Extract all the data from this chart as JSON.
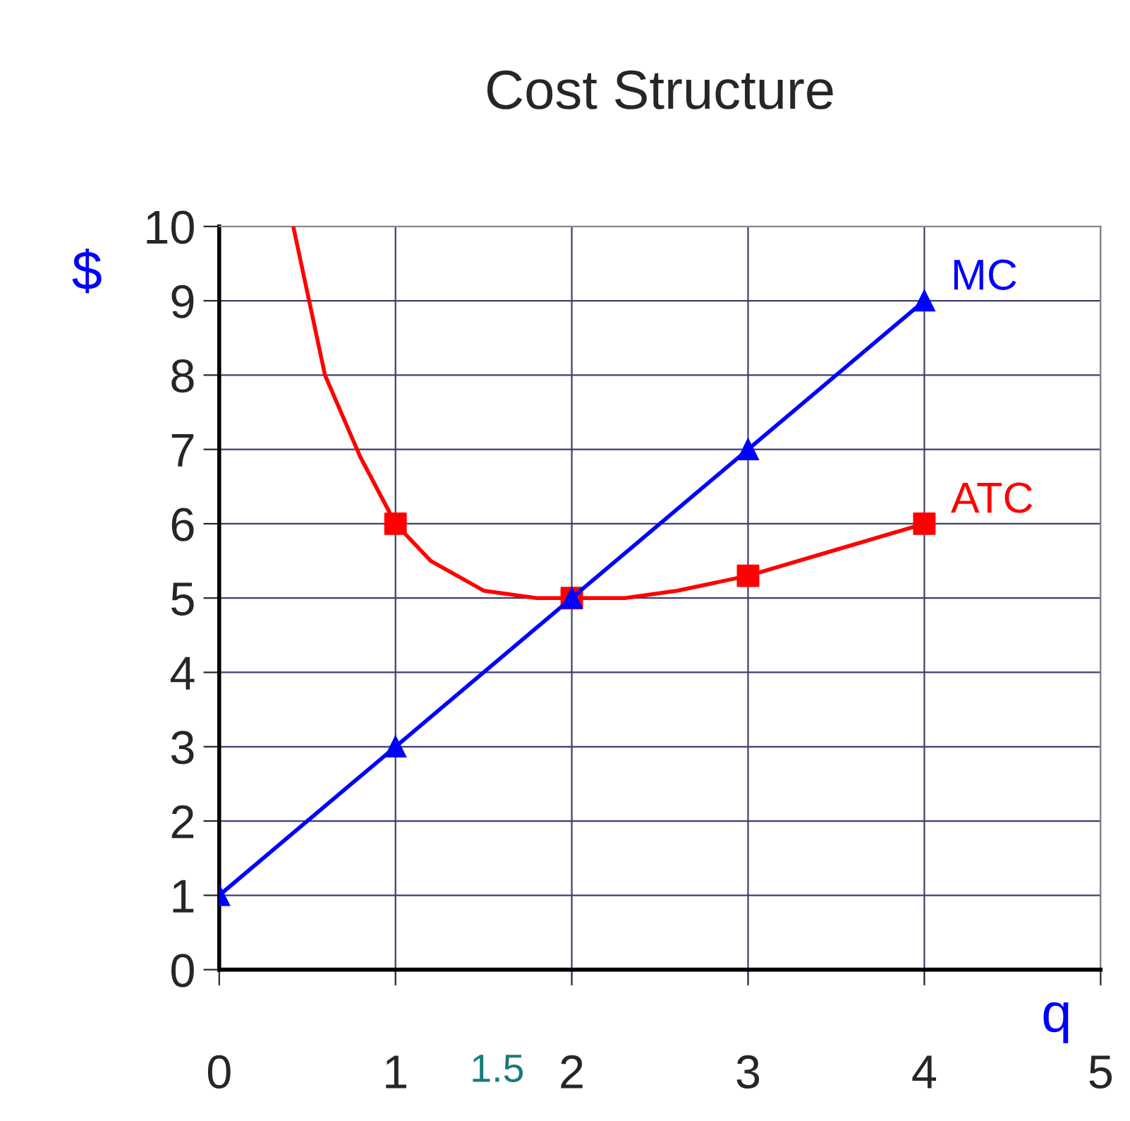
{
  "chart_data": {
    "type": "line",
    "title": "Cost Structure",
    "xlabel": "q",
    "ylabel": "$",
    "xlim": [
      0,
      5
    ],
    "ylim": [
      0,
      10
    ],
    "xticks": [
      0,
      1,
      2,
      3,
      4,
      5
    ],
    "yticks": [
      0,
      1,
      2,
      3,
      4,
      5,
      6,
      7,
      8,
      9,
      10
    ],
    "grid": true,
    "legend": false,
    "series": [
      {
        "name": "MC",
        "color": "#0000ff",
        "marker": "triangle",
        "x": [
          0,
          1,
          2,
          3,
          4
        ],
        "values": [
          1,
          3,
          5,
          7,
          9
        ]
      },
      {
        "name": "ATC",
        "color": "#ff0000",
        "marker": "none",
        "x": [
          0.42,
          0.6,
          0.8,
          1,
          1.2,
          1.5,
          1.8,
          2,
          2.3,
          2.6,
          3,
          3.5,
          4
        ],
        "values": [
          10,
          8,
          6.9,
          6,
          5.5,
          5.1,
          5.0,
          5.0,
          5.0,
          5.1,
          5.3,
          5.65,
          6
        ]
      },
      {
        "color": "#ff0000",
        "type": "scatter",
        "marker": "square",
        "x": [
          1,
          2,
          3,
          4
        ],
        "values": [
          6,
          5,
          5.3,
          6
        ]
      }
    ],
    "annotations": [
      "1.5"
    ]
  }
}
